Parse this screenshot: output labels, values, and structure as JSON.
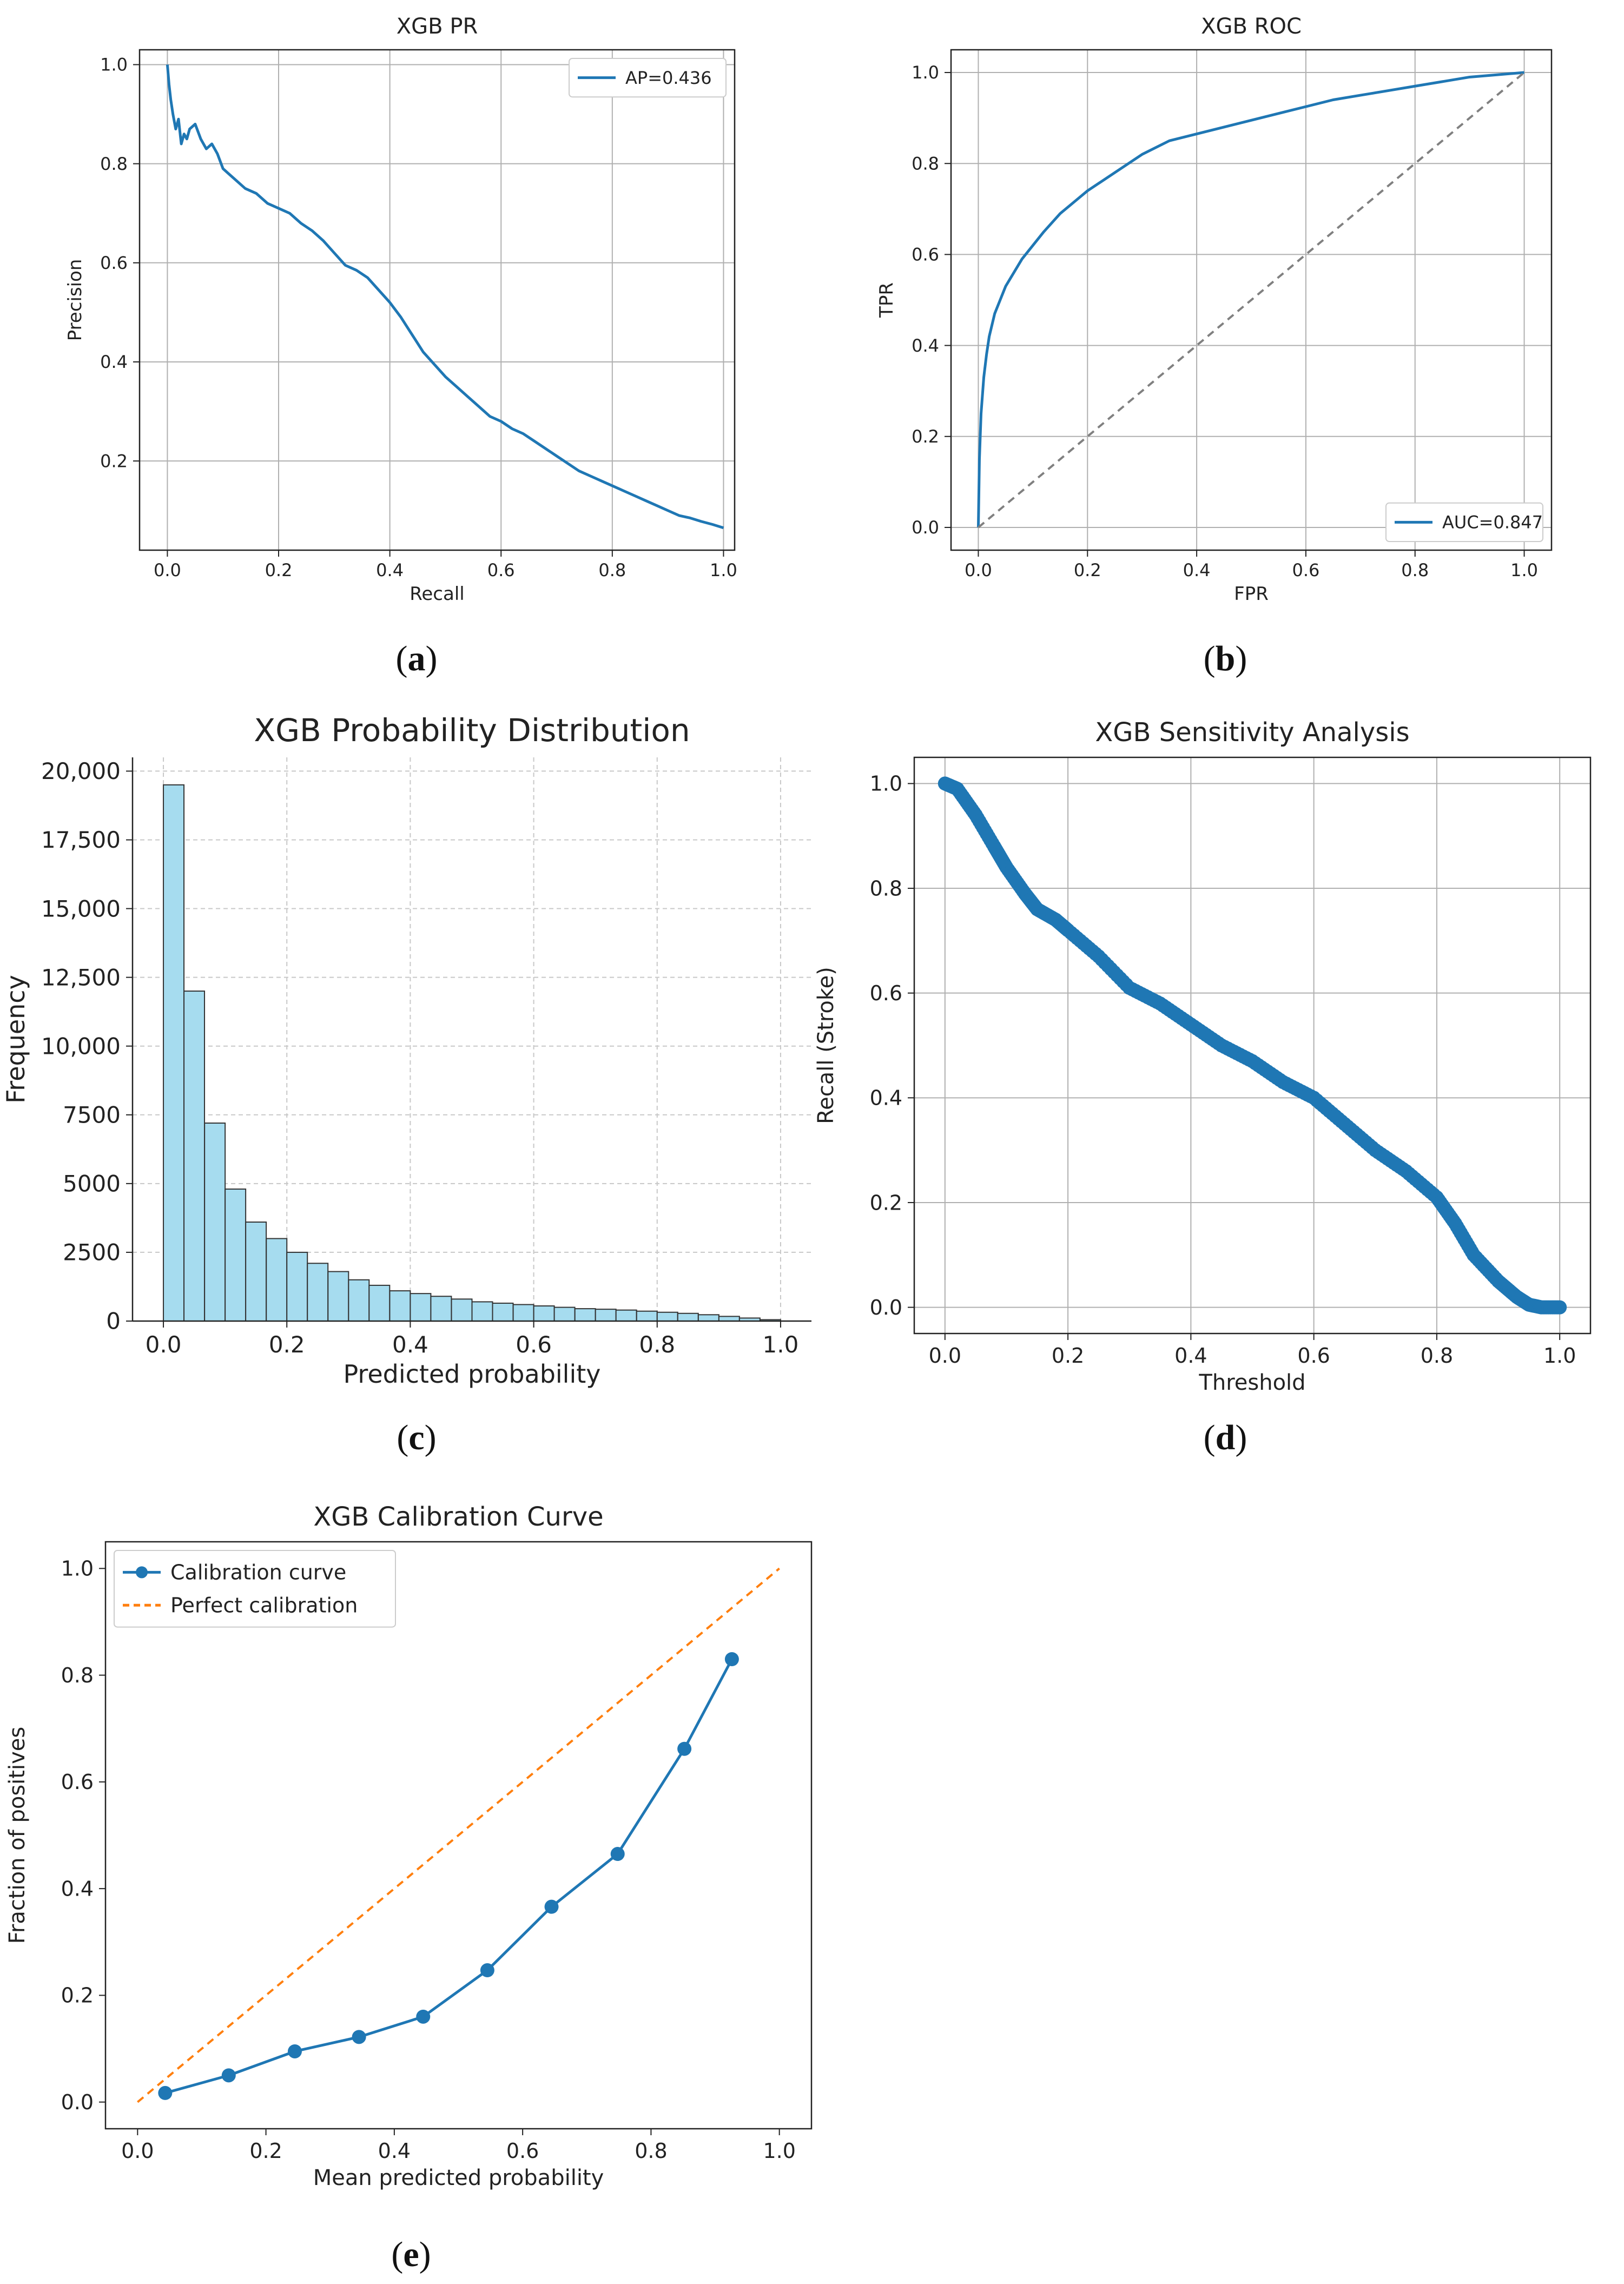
{
  "chart_data": [
    {
      "id": "pr",
      "type": "line",
      "panel_label": "a",
      "title": "XGB PR",
      "xlabel": "Recall",
      "ylabel": "Precision",
      "xlim": [
        -0.05,
        1.02
      ],
      "ylim": [
        0.02,
        1.03
      ],
      "xticks": [
        0.0,
        0.2,
        0.4,
        0.6,
        0.8,
        1.0
      ],
      "yticks": [
        0.2,
        0.4,
        0.6,
        0.8,
        1.0
      ],
      "grid": true,
      "legend_position": "upper-right",
      "colors": {
        "curve": "#1f77b4",
        "grid": "#b0b0b0"
      },
      "series": [
        {
          "name": "AP=0.436",
          "x": [
            0.0,
            0.003,
            0.006,
            0.01,
            0.015,
            0.02,
            0.025,
            0.03,
            0.035,
            0.04,
            0.05,
            0.06,
            0.07,
            0.08,
            0.09,
            0.1,
            0.11,
            0.12,
            0.14,
            0.16,
            0.18,
            0.2,
            0.22,
            0.24,
            0.26,
            0.28,
            0.3,
            0.32,
            0.34,
            0.36,
            0.38,
            0.4,
            0.42,
            0.44,
            0.46,
            0.48,
            0.5,
            0.52,
            0.54,
            0.56,
            0.58,
            0.6,
            0.62,
            0.64,
            0.66,
            0.68,
            0.7,
            0.72,
            0.74,
            0.76,
            0.78,
            0.8,
            0.82,
            0.84,
            0.86,
            0.88,
            0.9,
            0.92,
            0.94,
            0.96,
            0.98,
            1.0
          ],
          "y": [
            1.0,
            0.96,
            0.93,
            0.9,
            0.87,
            0.89,
            0.84,
            0.86,
            0.85,
            0.87,
            0.88,
            0.85,
            0.83,
            0.84,
            0.82,
            0.79,
            0.78,
            0.77,
            0.75,
            0.74,
            0.72,
            0.71,
            0.7,
            0.68,
            0.665,
            0.645,
            0.62,
            0.595,
            0.585,
            0.57,
            0.545,
            0.52,
            0.49,
            0.455,
            0.42,
            0.395,
            0.37,
            0.35,
            0.33,
            0.31,
            0.29,
            0.28,
            0.265,
            0.255,
            0.24,
            0.225,
            0.21,
            0.195,
            0.18,
            0.17,
            0.16,
            0.15,
            0.14,
            0.13,
            0.12,
            0.11,
            0.1,
            0.09,
            0.085,
            0.078,
            0.072,
            0.065
          ]
        }
      ]
    },
    {
      "id": "roc",
      "type": "line",
      "panel_label": "b",
      "title": "XGB ROC",
      "xlabel": "FPR",
      "ylabel": "TPR",
      "xlim": [
        -0.05,
        1.05
      ],
      "ylim": [
        -0.05,
        1.05
      ],
      "xticks": [
        0.0,
        0.2,
        0.4,
        0.6,
        0.8,
        1.0
      ],
      "yticks": [
        0.0,
        0.2,
        0.4,
        0.6,
        0.8,
        1.0
      ],
      "grid": true,
      "legend_position": "lower-right",
      "colors": {
        "curve": "#1f77b4",
        "diagonal": "#808080",
        "grid": "#b0b0b0"
      },
      "series": [
        {
          "name": "AUC=0.847",
          "x": [
            0.0,
            0.002,
            0.005,
            0.01,
            0.015,
            0.02,
            0.03,
            0.04,
            0.05,
            0.06,
            0.08,
            0.1,
            0.12,
            0.15,
            0.18,
            0.2,
            0.25,
            0.3,
            0.35,
            0.4,
            0.45,
            0.5,
            0.55,
            0.6,
            0.65,
            0.7,
            0.75,
            0.8,
            0.85,
            0.9,
            0.95,
            1.0
          ],
          "y": [
            0.0,
            0.15,
            0.25,
            0.33,
            0.38,
            0.42,
            0.47,
            0.5,
            0.53,
            0.55,
            0.59,
            0.62,
            0.65,
            0.69,
            0.72,
            0.74,
            0.78,
            0.82,
            0.85,
            0.865,
            0.88,
            0.895,
            0.91,
            0.925,
            0.94,
            0.95,
            0.96,
            0.97,
            0.98,
            0.99,
            0.995,
            1.0
          ]
        },
        {
          "name": "",
          "style": "dashed",
          "x": [
            0.0,
            1.0
          ],
          "y": [
            0.0,
            1.0
          ]
        }
      ]
    },
    {
      "id": "hist",
      "type": "bar",
      "panel_label": "c",
      "title": "XGB Probability Distribution",
      "xlabel": "Predicted probability",
      "ylabel": "Frequency",
      "xlim": [
        -0.05,
        1.05
      ],
      "ylim": [
        0,
        20500
      ],
      "xticks": [
        "0.0",
        "0.2",
        "0.4",
        "0.6",
        "0.8",
        "1.0"
      ],
      "yticks": [
        "0",
        "2500",
        "5000",
        "7500",
        "10,000",
        "12,500",
        "15,000",
        "17,500",
        "20,000"
      ],
      "ytick_values": [
        0,
        2500,
        5000,
        7500,
        10000,
        12500,
        15000,
        17500,
        20000
      ],
      "grid": true,
      "bin_width": 0.0333,
      "colors": {
        "bar_fill": "#a6dcef",
        "bar_edge": "#333333",
        "grid": "#c8c8c8"
      },
      "bin_starts": [
        0.0,
        0.0333,
        0.0667,
        0.1,
        0.1333,
        0.1667,
        0.2,
        0.2333,
        0.2667,
        0.3,
        0.3333,
        0.3667,
        0.4,
        0.4333,
        0.4667,
        0.5,
        0.5333,
        0.5667,
        0.6,
        0.6333,
        0.6667,
        0.7,
        0.7333,
        0.7667,
        0.8,
        0.8333,
        0.8667,
        0.9,
        0.9333,
        0.9667
      ],
      "values": [
        19500,
        12000,
        7200,
        4800,
        3600,
        3000,
        2500,
        2100,
        1800,
        1500,
        1300,
        1100,
        1000,
        900,
        800,
        700,
        650,
        600,
        550,
        500,
        450,
        430,
        400,
        360,
        320,
        280,
        230,
        170,
        110,
        50
      ]
    },
    {
      "id": "sens",
      "type": "scatter",
      "panel_label": "d",
      "title": "XGB Sensitivity Analysis",
      "xlabel": "Threshold",
      "ylabel": "Recall (Stroke)",
      "xlim": [
        -0.05,
        1.05
      ],
      "ylim": [
        -0.05,
        1.05
      ],
      "xticks": [
        0.0,
        0.2,
        0.4,
        0.6,
        0.8,
        1.0
      ],
      "yticks": [
        0.0,
        0.2,
        0.4,
        0.6,
        0.8,
        1.0
      ],
      "grid": true,
      "colors": {
        "points": "#1f77b4",
        "grid": "#b0b0b0"
      },
      "curve_x": [
        0.0,
        0.02,
        0.05,
        0.08,
        0.1,
        0.13,
        0.15,
        0.18,
        0.2,
        0.25,
        0.3,
        0.35,
        0.4,
        0.45,
        0.5,
        0.55,
        0.6,
        0.65,
        0.7,
        0.75,
        0.8,
        0.83,
        0.86,
        0.9,
        0.93,
        0.95,
        0.97,
        1.0
      ],
      "curve_y": [
        1.0,
        0.99,
        0.94,
        0.88,
        0.84,
        0.79,
        0.76,
        0.74,
        0.72,
        0.67,
        0.61,
        0.58,
        0.54,
        0.5,
        0.47,
        0.43,
        0.4,
        0.35,
        0.3,
        0.26,
        0.21,
        0.16,
        0.1,
        0.05,
        0.02,
        0.005,
        0.0,
        0.0
      ]
    },
    {
      "id": "calib",
      "type": "line",
      "panel_label": "e",
      "title": "XGB Calibration Curve",
      "xlabel": "Mean predicted probability",
      "ylabel": "Fraction of positives",
      "xlim": [
        -0.05,
        1.05
      ],
      "ylim": [
        -0.05,
        1.05
      ],
      "xticks": [
        0.0,
        0.2,
        0.4,
        0.6,
        0.8,
        1.0
      ],
      "yticks": [
        0.0,
        0.2,
        0.4,
        0.6,
        0.8,
        1.0
      ],
      "grid": false,
      "legend_position": "upper-left",
      "colors": {
        "curve": "#1f77b4",
        "perfect": "#ff7f0e"
      },
      "series": [
        {
          "name": "Calibration curve",
          "marker": "circle",
          "x": [
            0.043,
            0.142,
            0.245,
            0.345,
            0.445,
            0.545,
            0.645,
            0.748,
            0.852,
            0.926
          ],
          "y": [
            0.017,
            0.05,
            0.095,
            0.122,
            0.16,
            0.247,
            0.366,
            0.465,
            0.662,
            0.83
          ]
        },
        {
          "name": "Perfect calibration",
          "style": "dashed",
          "x": [
            0.0,
            1.0
          ],
          "y": [
            0.0,
            1.0
          ]
        }
      ]
    }
  ]
}
